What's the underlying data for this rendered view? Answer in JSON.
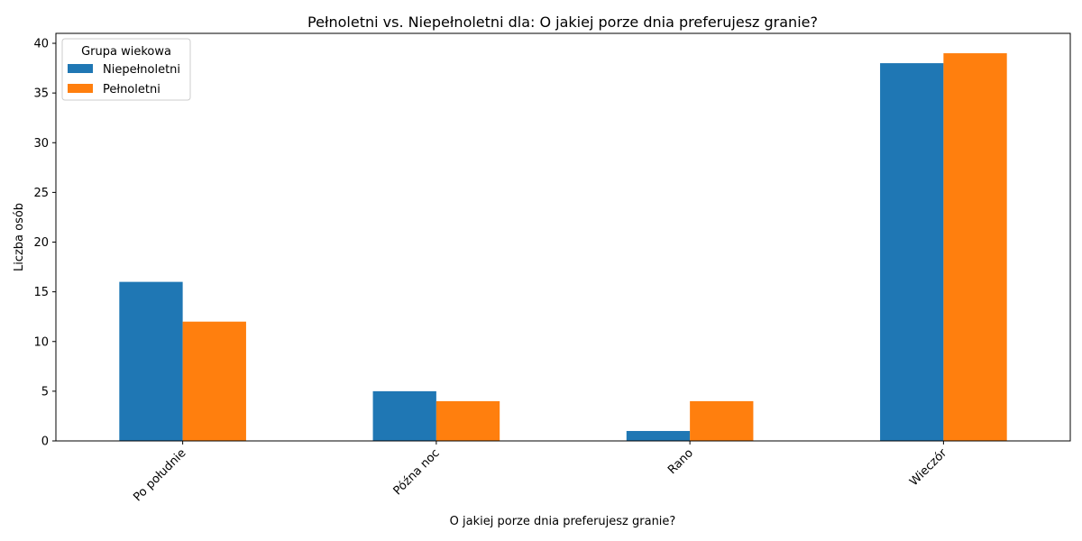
{
  "chart_data": {
    "type": "bar",
    "title": "Pełnoletni vs. Niepełnoletni dla: O jakiej porze dnia preferujesz granie?",
    "xlabel": "O jakiej porze dnia preferujesz granie?",
    "ylabel": "Liczba osób",
    "categories": [
      "Po południe",
      "Późna noc",
      "Rano",
      "Wieczór"
    ],
    "series": [
      {
        "name": "Niepełnoletni",
        "values": [
          16,
          5,
          1,
          38
        ],
        "color": "#1f77b4"
      },
      {
        "name": "Pełnoletni",
        "values": [
          12,
          4,
          4,
          39
        ],
        "color": "#ff7f0e"
      }
    ],
    "ylim": [
      0,
      41
    ],
    "yticks": [
      0,
      5,
      10,
      15,
      20,
      25,
      30,
      35,
      40
    ],
    "legend": {
      "title": "Grupa wiekowa",
      "placement": "top-left"
    },
    "grid": false
  }
}
